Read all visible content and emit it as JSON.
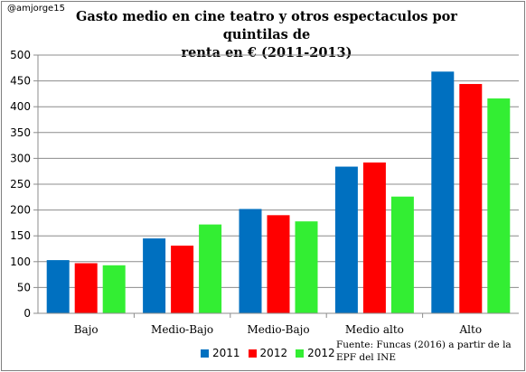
{
  "header": {
    "credit": "@amjorge15",
    "title_line1": "Gasto medio en cine teatro y otros espectaculos por quintilas de",
    "title_line2": "renta en € (2011-2013)"
  },
  "source_note": "Fuente: Funcas (2016) a partir de la EPF del INE",
  "chart_data": {
    "type": "bar",
    "title": "Gasto medio en cine teatro y otros espectaculos por quintilas de renta en € (2011-2013)",
    "xlabel": "",
    "ylabel": "",
    "categories": [
      "Bajo",
      "Medio-Bajo",
      "Medio-Bajo",
      "Medio alto",
      "Alto"
    ],
    "series": [
      {
        "name": "2011",
        "color": "#0070c0",
        "values": [
          103,
          145,
          202,
          284,
          468
        ]
      },
      {
        "name": "2012",
        "color": "#ff0000",
        "values": [
          97,
          131,
          190,
          292,
          444
        ]
      },
      {
        "name": "2012",
        "color": "#33ee33",
        "values": [
          93,
          172,
          178,
          226,
          416
        ]
      }
    ],
    "ylim": [
      0,
      500
    ],
    "yticks": [
      0,
      50,
      100,
      150,
      200,
      250,
      300,
      350,
      400,
      450,
      500
    ],
    "grid": true,
    "legend": "bottom"
  }
}
